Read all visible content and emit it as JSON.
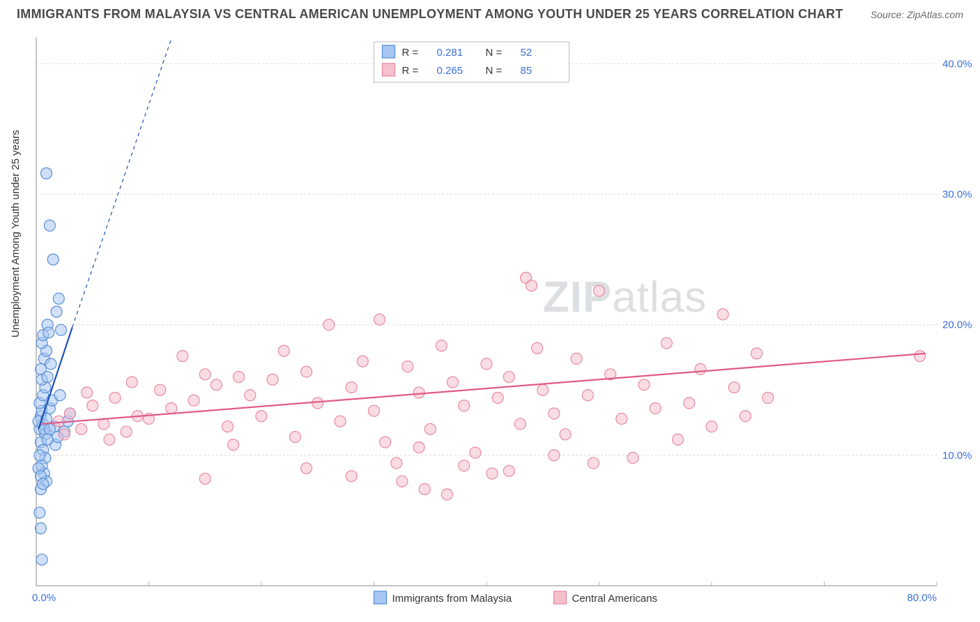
{
  "header": {
    "title": "IMMIGRANTS FROM MALAYSIA VS CENTRAL AMERICAN UNEMPLOYMENT AMONG YOUTH UNDER 25 YEARS CORRELATION CHART",
    "source_label": "Source:",
    "source_value": "ZipAtlas.com"
  },
  "ylabel": "Unemployment Among Youth under 25 years",
  "watermark": {
    "bold": "ZIP",
    "light": "atlas"
  },
  "chart": {
    "type": "scatter",
    "background_color": "#ffffff",
    "grid_color": "#d9d9d9",
    "axis_color": "#8a8a8a",
    "tick_color": "#3a6fd8",
    "xlim": [
      0,
      80
    ],
    "ylim": [
      0,
      42
    ],
    "x_ticks": [
      0,
      10,
      20,
      30,
      40,
      50,
      60,
      70,
      80
    ],
    "y_ticks": [
      10,
      20,
      30,
      40
    ],
    "x_tick_labels": {
      "0": "0.0%",
      "80": "80.0%"
    },
    "y_tick_labels": {
      "10": "10.0%",
      "20": "20.0%",
      "30": "30.0%",
      "40": "40.0%"
    },
    "marker_radius": 8,
    "marker_opacity": 0.55,
    "series": [
      {
        "name": "Immigrants from Malaysia",
        "color_fill": "#a7c7f2",
        "color_stroke": "#5a8fd6",
        "R": "0.281",
        "N": "52",
        "trend": {
          "x1": 0.2,
          "y1": 12.0,
          "x2": 3.2,
          "y2": 19.8,
          "ext_x2": 20,
          "ext_y2": 62,
          "width": 2.2,
          "color": "#1f4fb0"
        },
        "points": [
          [
            0.3,
            12.0
          ],
          [
            0.6,
            12.4
          ],
          [
            0.4,
            13.0
          ],
          [
            0.8,
            11.6
          ],
          [
            0.2,
            12.6
          ],
          [
            0.5,
            13.4
          ],
          [
            0.7,
            12.0
          ],
          [
            0.9,
            12.8
          ],
          [
            0.3,
            14.0
          ],
          [
            0.6,
            14.6
          ],
          [
            0.8,
            15.2
          ],
          [
            0.5,
            15.8
          ],
          [
            0.4,
            16.6
          ],
          [
            0.7,
            17.4
          ],
          [
            0.9,
            18.0
          ],
          [
            0.5,
            18.6
          ],
          [
            0.6,
            19.2
          ],
          [
            1.0,
            20.0
          ],
          [
            1.1,
            19.4
          ],
          [
            0.4,
            11.0
          ],
          [
            0.6,
            10.4
          ],
          [
            0.8,
            9.8
          ],
          [
            0.5,
            9.2
          ],
          [
            0.7,
            8.6
          ],
          [
            0.9,
            8.0
          ],
          [
            0.4,
            7.4
          ],
          [
            1.2,
            13.6
          ],
          [
            1.4,
            14.2
          ],
          [
            1.6,
            12.2
          ],
          [
            1.0,
            16.0
          ],
          [
            1.3,
            17.0
          ],
          [
            0.3,
            10.0
          ],
          [
            0.2,
            9.0
          ],
          [
            0.4,
            8.4
          ],
          [
            0.6,
            7.8
          ],
          [
            1.8,
            21.0
          ],
          [
            2.0,
            22.0
          ],
          [
            2.2,
            19.6
          ],
          [
            1.5,
            25.0
          ],
          [
            1.2,
            27.6
          ],
          [
            0.9,
            31.6
          ],
          [
            0.4,
            4.4
          ],
          [
            0.5,
            2.0
          ],
          [
            0.3,
            5.6
          ],
          [
            2.5,
            11.8
          ],
          [
            2.8,
            12.6
          ],
          [
            3.0,
            13.2
          ],
          [
            1.7,
            10.8
          ],
          [
            1.9,
            11.4
          ],
          [
            2.1,
            14.6
          ],
          [
            1.0,
            11.2
          ],
          [
            1.2,
            12.0
          ]
        ]
      },
      {
        "name": "Central Americans",
        "color_fill": "#f6c0cd",
        "color_stroke": "#e78aa3",
        "R": "0.265",
        "N": "85",
        "trend": {
          "x1": 0.5,
          "y1": 12.4,
          "x2": 79,
          "y2": 17.8,
          "width": 2.2,
          "color": "#e05a87"
        },
        "points": [
          [
            2.0,
            12.6
          ],
          [
            3.0,
            13.2
          ],
          [
            4.0,
            12.0
          ],
          [
            5.0,
            13.8
          ],
          [
            6.0,
            12.4
          ],
          [
            7.0,
            14.4
          ],
          [
            8.0,
            11.8
          ],
          [
            9.0,
            13.0
          ],
          [
            10.0,
            12.8
          ],
          [
            11.0,
            15.0
          ],
          [
            12.0,
            13.6
          ],
          [
            13.0,
            17.6
          ],
          [
            14.0,
            14.2
          ],
          [
            15.0,
            16.2
          ],
          [
            16.0,
            15.4
          ],
          [
            17.0,
            12.2
          ],
          [
            17.5,
            10.8
          ],
          [
            18.0,
            16.0
          ],
          [
            19.0,
            14.6
          ],
          [
            20.0,
            13.0
          ],
          [
            21.0,
            15.8
          ],
          [
            22.0,
            18.0
          ],
          [
            23.0,
            11.4
          ],
          [
            24.0,
            16.4
          ],
          [
            25.0,
            14.0
          ],
          [
            26.0,
            20.0
          ],
          [
            27.0,
            12.6
          ],
          [
            28.0,
            15.2
          ],
          [
            29.0,
            17.2
          ],
          [
            30.0,
            13.4
          ],
          [
            30.5,
            20.4
          ],
          [
            31.0,
            11.0
          ],
          [
            32.0,
            9.4
          ],
          [
            32.5,
            8.0
          ],
          [
            33.0,
            16.8
          ],
          [
            34.0,
            14.8
          ],
          [
            34.5,
            7.4
          ],
          [
            35.0,
            12.0
          ],
          [
            36.0,
            18.4
          ],
          [
            36.5,
            7.0
          ],
          [
            37.0,
            15.6
          ],
          [
            38.0,
            13.8
          ],
          [
            39.0,
            10.2
          ],
          [
            40.0,
            17.0
          ],
          [
            40.5,
            8.6
          ],
          [
            41.0,
            14.4
          ],
          [
            42.0,
            16.0
          ],
          [
            43.0,
            12.4
          ],
          [
            43.5,
            23.6
          ],
          [
            44.0,
            23.0
          ],
          [
            44.5,
            18.2
          ],
          [
            45.0,
            15.0
          ],
          [
            46.0,
            13.2
          ],
          [
            47.0,
            11.6
          ],
          [
            48.0,
            17.4
          ],
          [
            49.0,
            14.6
          ],
          [
            50.0,
            22.6
          ],
          [
            51.0,
            16.2
          ],
          [
            52.0,
            12.8
          ],
          [
            53.0,
            9.8
          ],
          [
            54.0,
            15.4
          ],
          [
            55.0,
            13.6
          ],
          [
            56.0,
            18.6
          ],
          [
            57.0,
            11.2
          ],
          [
            58.0,
            14.0
          ],
          [
            59.0,
            16.6
          ],
          [
            60.0,
            12.2
          ],
          [
            61.0,
            20.8
          ],
          [
            62.0,
            15.2
          ],
          [
            63.0,
            13.0
          ],
          [
            64.0,
            17.8
          ],
          [
            78.5,
            17.6
          ],
          [
            15.0,
            8.2
          ],
          [
            24.0,
            9.0
          ],
          [
            28.0,
            8.4
          ],
          [
            34.0,
            10.6
          ],
          [
            38.0,
            9.2
          ],
          [
            42.0,
            8.8
          ],
          [
            46.0,
            10.0
          ],
          [
            49.5,
            9.4
          ],
          [
            65.0,
            14.4
          ],
          [
            2.5,
            11.6
          ],
          [
            4.5,
            14.8
          ],
          [
            6.5,
            11.2
          ],
          [
            8.5,
            15.6
          ]
        ]
      }
    ]
  },
  "legend": {
    "r_label": "R  =",
    "n_label": "N  ="
  },
  "bottom_legend": {
    "items": [
      {
        "swatch_fill": "#a7c7f2",
        "swatch_stroke": "#5a8fd6",
        "label_key": "chart.series.0.name"
      },
      {
        "swatch_fill": "#f6c0cd",
        "swatch_stroke": "#e78aa3",
        "label_key": "chart.series.1.name"
      }
    ]
  }
}
